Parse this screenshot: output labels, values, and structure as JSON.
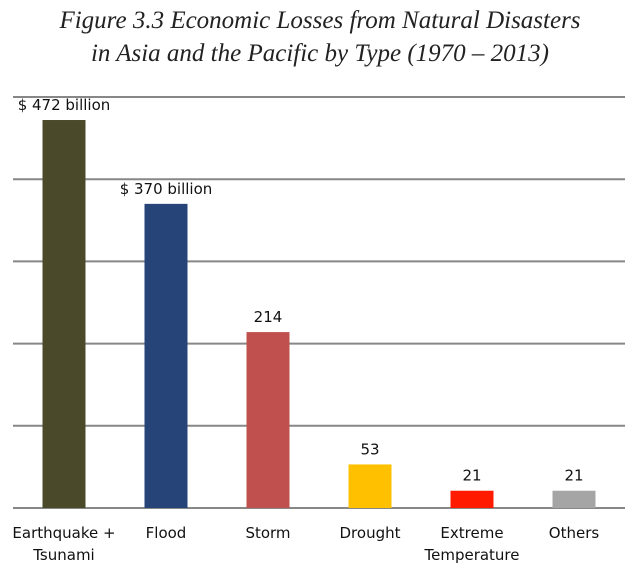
{
  "chart_data": {
    "type": "bar",
    "title_lines": [
      "Figure 3.3 Economic Losses from Natural Disasters",
      "in Asia and the Pacific by Type (1970 – 2013)"
    ],
    "title": "Figure 3.3 Economic Losses from Natural Disasters in Asia and the Pacific by Type (1970 – 2013)",
    "xlabel": "",
    "ylabel": "",
    "categories": [
      [
        "Earthquake +",
        "Tsunami"
      ],
      [
        "Flood"
      ],
      [
        "Storm"
      ],
      [
        "Drought"
      ],
      [
        "Extreme",
        "Temperature"
      ],
      [
        "Others"
      ]
    ],
    "category_names": [
      "Earthquake + Tsunami",
      "Flood",
      "Storm",
      "Drought",
      "Extreme Temperature",
      "Others"
    ],
    "values": [
      472,
      370,
      214,
      53,
      21,
      21
    ],
    "data_labels": [
      "$ 472 billion",
      "$ 370 billion",
      "214",
      "53",
      "21",
      "21"
    ],
    "colors": [
      "#4a4a2a",
      "#264478",
      "#c0504d",
      "#ffc000",
      "#ff1a00",
      "#a5a5a5"
    ],
    "units": "US$ billion",
    "ylim": [
      0,
      500
    ],
    "gridlines": [
      0,
      100,
      200,
      300,
      400,
      500
    ],
    "grid": true,
    "y_tick_labels_shown": false,
    "legend": "none"
  }
}
